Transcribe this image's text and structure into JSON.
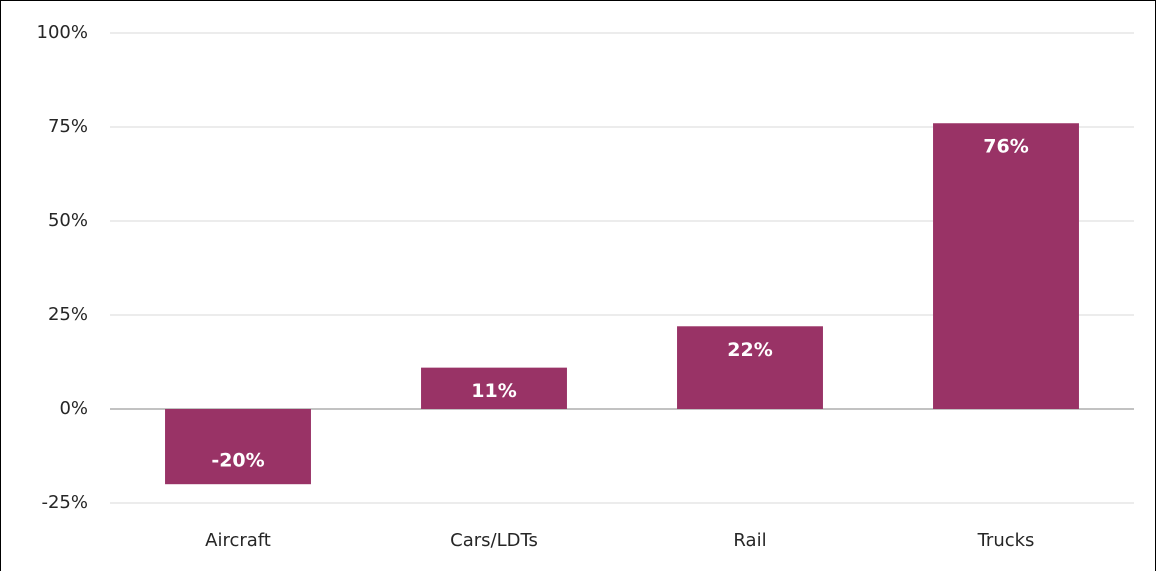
{
  "chart_data": {
    "type": "bar",
    "categories": [
      "Aircraft",
      "Cars/LDTs",
      "Rail",
      "Trucks"
    ],
    "values": [
      -20,
      11,
      22,
      76
    ],
    "value_labels": [
      "-20%",
      "11%",
      "22%",
      "76%"
    ],
    "color": "#993366",
    "ylim": [
      -25,
      100
    ],
    "yticks": [
      {
        "value": -25,
        "label": "-25%"
      },
      {
        "value": 0,
        "label": "0%"
      },
      {
        "value": 25,
        "label": "25%"
      },
      {
        "value": 50,
        "label": "50%"
      },
      {
        "value": 75,
        "label": "75%"
      },
      {
        "value": 100,
        "label": "100%"
      }
    ],
    "grid": true
  }
}
